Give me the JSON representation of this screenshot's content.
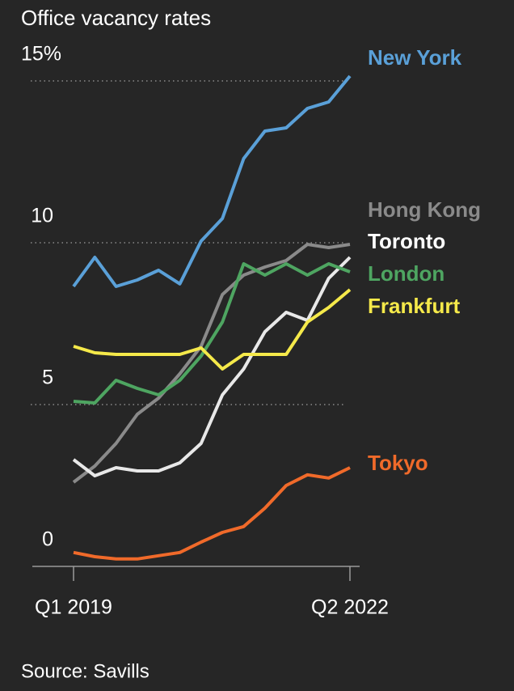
{
  "chart_data": {
    "type": "line",
    "title": "Office vacancy rates",
    "source": "Source: Savills",
    "categories": [
      "Q1 2019",
      null,
      null,
      null,
      null,
      null,
      null,
      null,
      null,
      null,
      null,
      null,
      null,
      "Q2 2022"
    ],
    "ylim": [
      0,
      15.5
    ],
    "yticks": [
      0,
      5,
      10,
      {
        "value": 15,
        "label": "15%"
      }
    ],
    "grid": true,
    "series": [
      {
        "name": "New York",
        "color": "#5aa0d8",
        "values": [
          8.65,
          9.55,
          8.65,
          8.85,
          9.15,
          8.73,
          10.05,
          10.75,
          12.6,
          13.45,
          13.55,
          14.15,
          14.35,
          15.15
        ]
      },
      {
        "name": "Hong Kong",
        "color": "#8a8a8a",
        "values": [
          2.6,
          3.1,
          3.8,
          4.7,
          5.2,
          5.95,
          6.8,
          8.4,
          9.0,
          9.25,
          9.45,
          9.95,
          9.85,
          9.95
        ]
      },
      {
        "name": "Toronto",
        "color": "#e8e8e8",
        "values": [
          3.3,
          2.8,
          3.05,
          2.95,
          2.95,
          3.2,
          3.8,
          5.3,
          6.1,
          7.25,
          7.85,
          7.6,
          8.9,
          9.55
        ]
      },
      {
        "name": "London",
        "color": "#4ea561",
        "values": [
          5.1,
          5.05,
          5.75,
          5.5,
          5.3,
          5.75,
          6.5,
          7.55,
          9.35,
          9.0,
          9.35,
          9.0,
          9.35,
          9.1
        ]
      },
      {
        "name": "Frankfurt",
        "color": "#f5e94a",
        "values": [
          6.8,
          6.6,
          6.55,
          6.55,
          6.55,
          6.55,
          6.75,
          6.1,
          6.55,
          6.55,
          6.55,
          7.55,
          8.0,
          8.55
        ]
      },
      {
        "name": "Tokyo",
        "color": "#f06a2a",
        "values": [
          0.43,
          0.3,
          0.23,
          0.23,
          0.33,
          0.43,
          0.75,
          1.05,
          1.23,
          1.8,
          2.5,
          2.83,
          2.73,
          3.05
        ]
      }
    ]
  }
}
